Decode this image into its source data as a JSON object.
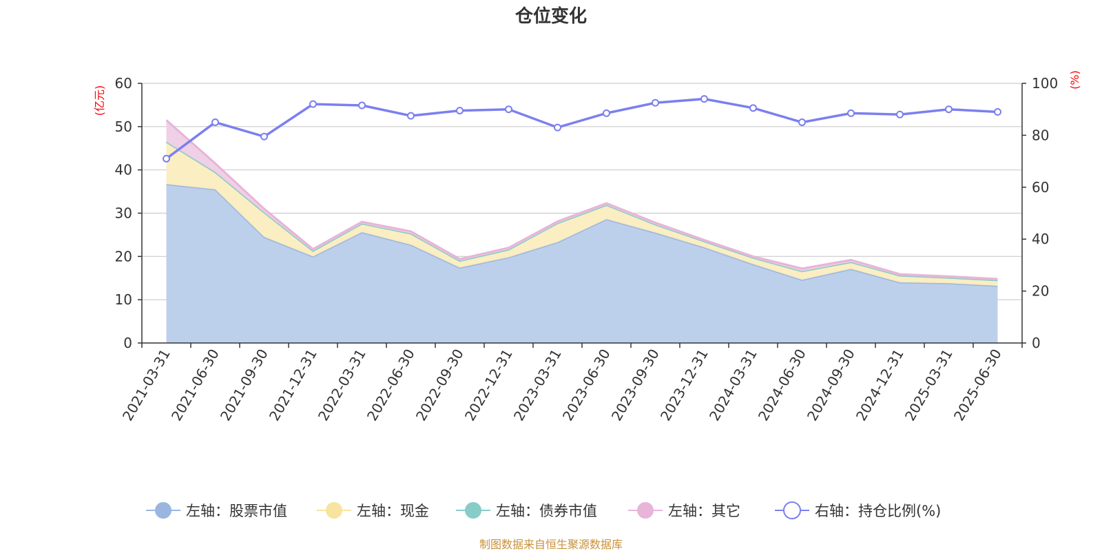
{
  "chart_data": {
    "type": "area",
    "title": "仓位变化",
    "categories": [
      "2021-03-31",
      "2021-06-30",
      "2021-09-30",
      "2021-12-31",
      "2022-03-31",
      "2022-06-30",
      "2022-09-30",
      "2022-12-31",
      "2023-03-31",
      "2023-06-30",
      "2023-09-30",
      "2023-12-31",
      "2024-03-31",
      "2024-06-30",
      "2024-09-30",
      "2024-12-31",
      "2025-03-31",
      "2025-06-30"
    ],
    "left_axis": {
      "unit": "(亿元)",
      "ylim": [
        0,
        60
      ],
      "ticks": [
        "0",
        "10",
        "20",
        "30",
        "40",
        "50",
        "60"
      ]
    },
    "right_axis": {
      "unit": "(%)",
      "ylim": [
        0,
        100
      ],
      "ticks": [
        "0",
        "20",
        "40",
        "60",
        "80",
        "100"
      ]
    },
    "grid": true,
    "legend_position": "bottom",
    "series": [
      {
        "name": "左轴：股票市值",
        "axis": "left",
        "kind": "area",
        "color": "#9ab6e0",
        "fill": "#b9cdea",
        "values": [
          36.7,
          35.5,
          24.5,
          20.0,
          25.6,
          22.7,
          17.4,
          19.8,
          23.3,
          28.6,
          25.5,
          22.1,
          18.2,
          14.6,
          17.1,
          14.0,
          13.8,
          13.2
        ]
      },
      {
        "name": "左轴：现金",
        "axis": "left",
        "kind": "area",
        "color": "#f7e4a0",
        "fill": "#faedbf",
        "values": [
          9.8,
          4.0,
          5.7,
          1.3,
          2.0,
          2.6,
          1.6,
          1.8,
          4.4,
          3.3,
          1.9,
          1.4,
          1.5,
          2.0,
          1.6,
          1.6,
          1.3,
          1.3
        ]
      },
      {
        "name": "左轴：债券市值",
        "axis": "left",
        "kind": "area",
        "color": "#88ccc8",
        "fill": "#b5e2de",
        "values": [
          0.0,
          0.0,
          0.0,
          0.0,
          0.0,
          0.0,
          0.0,
          0.0,
          0.0,
          0.0,
          0.0,
          0.0,
          0.0,
          0.0,
          0.0,
          0.0,
          0.0,
          0.0
        ]
      },
      {
        "name": "左轴：其它",
        "axis": "left",
        "kind": "area",
        "color": "#e8b4d8",
        "fill": "#efcde5",
        "values": [
          5.0,
          2.0,
          0.8,
          0.4,
          0.4,
          0.5,
          0.4,
          0.4,
          0.4,
          0.4,
          0.4,
          0.3,
          0.3,
          0.6,
          0.5,
          0.3,
          0.3,
          0.3
        ]
      },
      {
        "name": "右轴：持仓比例(%)",
        "axis": "right",
        "kind": "line",
        "color": "#7b7ff0",
        "values": [
          71.0,
          85.0,
          79.5,
          92.0,
          91.5,
          87.5,
          89.5,
          90.0,
          83.0,
          88.5,
          92.5,
          94.0,
          90.5,
          85.0,
          88.5,
          88.0,
          90.0,
          89.0
        ]
      }
    ],
    "source_note": "制图数据来自恒生聚源数据库"
  }
}
